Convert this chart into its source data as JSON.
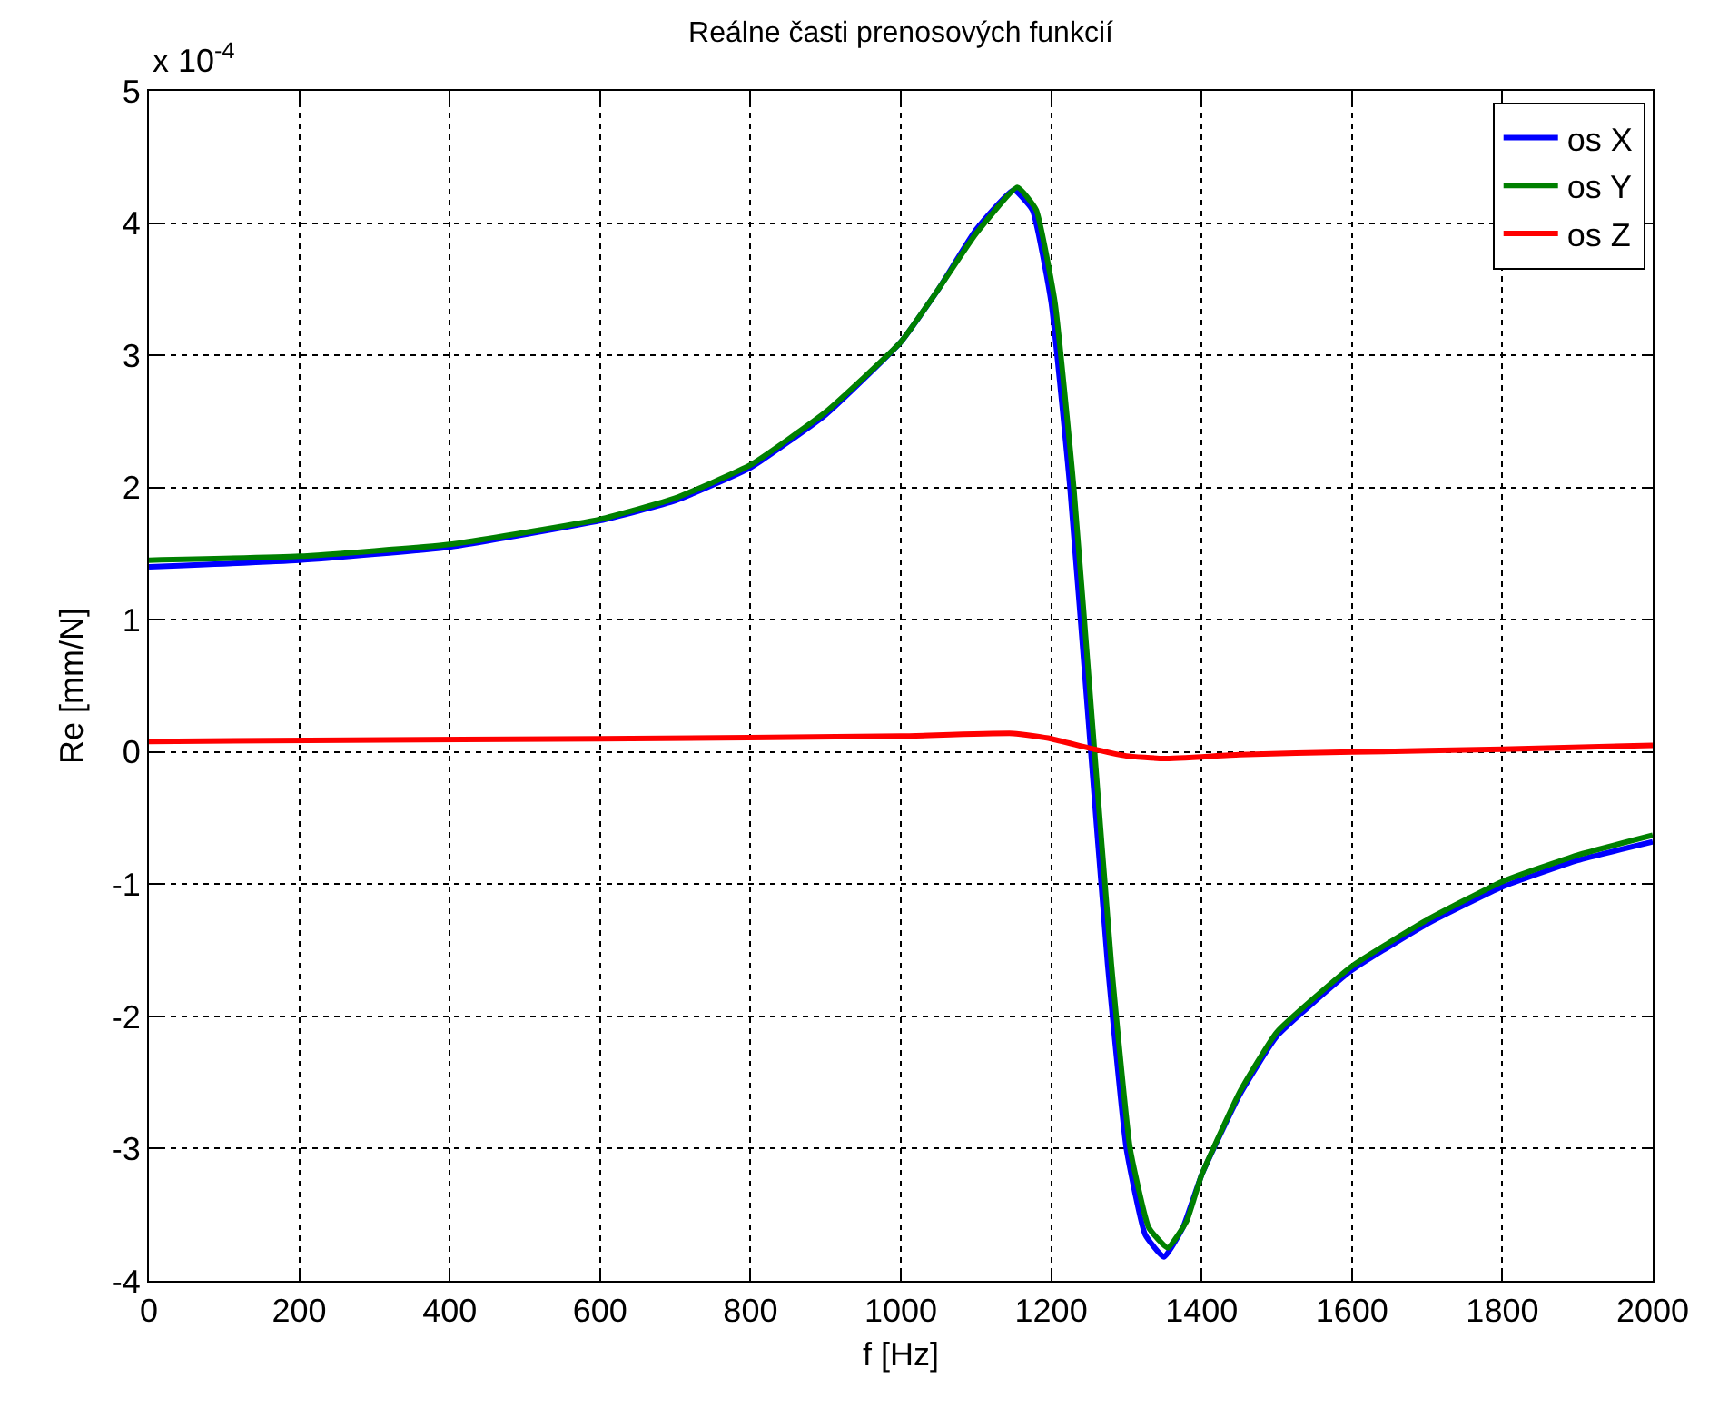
{
  "chart_data": {
    "type": "line",
    "title": "Reálne časti prenosových funkcií",
    "xlabel": "f [Hz]",
    "ylabel": "Re [mm/N]",
    "annotations": [
      "x 10$^{-4}$"
    ],
    "xlim": [
      0,
      2000
    ],
    "xticks": [
      0,
      200,
      400,
      600,
      800,
      1000,
      1200,
      1400,
      1600,
      1800,
      2000
    ],
    "ylim": [
      -4,
      5
    ],
    "yticks": [
      -4,
      -3,
      -2,
      -1,
      0,
      1,
      2,
      3,
      4,
      5
    ],
    "grid": true,
    "legend": "top right",
    "series": [
      {
        "name": "os X",
        "color": "#0000ff",
        "x": [
          0,
          200,
          400,
          600,
          700,
          800,
          900,
          1000,
          1050,
          1100,
          1150,
          1175,
          1200,
          1225,
          1250,
          1275,
          1300,
          1325,
          1350,
          1375,
          1400,
          1450,
          1500,
          1600,
          1700,
          1800,
          1900,
          2000
        ],
        "values": [
          1.4,
          1.45,
          1.55,
          1.75,
          1.9,
          2.15,
          2.55,
          3.1,
          3.5,
          3.95,
          4.25,
          4.1,
          3.4,
          2.0,
          0.2,
          -1.6,
          -3.0,
          -3.65,
          -3.82,
          -3.6,
          -3.2,
          -2.6,
          -2.15,
          -1.65,
          -1.3,
          -1.02,
          -0.82,
          -0.68
        ]
      },
      {
        "name": "os Y",
        "color": "#008000",
        "x": [
          0,
          200,
          400,
          600,
          700,
          800,
          900,
          1000,
          1050,
          1100,
          1155,
          1180,
          1205,
          1230,
          1255,
          1280,
          1305,
          1330,
          1355,
          1380,
          1400,
          1450,
          1500,
          1600,
          1700,
          1800,
          1900,
          2000
        ],
        "values": [
          1.45,
          1.48,
          1.57,
          1.76,
          1.92,
          2.17,
          2.57,
          3.1,
          3.5,
          3.92,
          4.27,
          4.1,
          3.4,
          2.0,
          0.2,
          -1.6,
          -3.0,
          -3.6,
          -3.75,
          -3.55,
          -3.2,
          -2.58,
          -2.12,
          -1.62,
          -1.27,
          -0.98,
          -0.78,
          -0.63
        ]
      },
      {
        "name": "os Z",
        "color": "#ff0000",
        "x": [
          0,
          600,
          1000,
          1150,
          1200,
          1250,
          1300,
          1350,
          1450,
          1600,
          1800,
          2000
        ],
        "values": [
          0.08,
          0.1,
          0.12,
          0.14,
          0.1,
          0.03,
          -0.03,
          -0.05,
          -0.02,
          0.0,
          0.02,
          0.05
        ]
      }
    ]
  }
}
